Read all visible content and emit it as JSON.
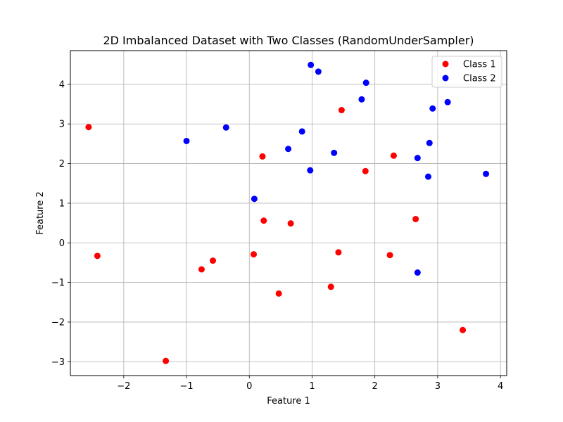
{
  "chart_data": {
    "type": "scatter",
    "title": "2D Imbalanced Dataset with Two Classes (RandomUnderSampler)",
    "xlabel": "Feature 1",
    "ylabel": "Feature 2",
    "xlim": [
      -2.85,
      4.1
    ],
    "ylim": [
      -3.35,
      4.85
    ],
    "xticks": [
      -2,
      -1,
      0,
      1,
      2,
      3,
      4
    ],
    "xtick_labels": [
      "−2",
      "−1",
      "0",
      "1",
      "2",
      "3",
      "4"
    ],
    "yticks": [
      -3,
      -2,
      -1,
      0,
      1,
      2,
      3,
      4
    ],
    "ytick_labels": [
      "−3",
      "−2",
      "−1",
      "0",
      "1",
      "2",
      "3",
      "4"
    ],
    "grid": true,
    "legend_position": "top-right",
    "series": [
      {
        "name": "Class 1",
        "color": "#ff0000",
        "points": [
          [
            -2.56,
            2.92
          ],
          [
            -2.42,
            -0.33
          ],
          [
            -1.33,
            -2.98
          ],
          [
            -0.76,
            -0.67
          ],
          [
            -0.58,
            -0.45
          ],
          [
            0.07,
            -0.29
          ],
          [
            0.21,
            2.18
          ],
          [
            0.23,
            0.56
          ],
          [
            0.47,
            -1.28
          ],
          [
            0.66,
            0.49
          ],
          [
            1.3,
            -1.11
          ],
          [
            1.42,
            -0.24
          ],
          [
            1.47,
            3.35
          ],
          [
            1.85,
            1.81
          ],
          [
            2.24,
            -0.31
          ],
          [
            2.3,
            2.2
          ],
          [
            2.65,
            0.6
          ],
          [
            3.4,
            -2.2
          ]
        ]
      },
      {
        "name": "Class 2",
        "color": "#0000ff",
        "points": [
          [
            -1.0,
            2.57
          ],
          [
            -0.37,
            2.91
          ],
          [
            0.08,
            1.11
          ],
          [
            0.62,
            2.37
          ],
          [
            0.84,
            2.81
          ],
          [
            0.97,
            1.83
          ],
          [
            0.98,
            4.49
          ],
          [
            1.1,
            4.32
          ],
          [
            1.35,
            2.27
          ],
          [
            1.79,
            3.62
          ],
          [
            1.86,
            4.04
          ],
          [
            2.68,
            2.14
          ],
          [
            2.68,
            -0.75
          ],
          [
            2.85,
            1.67
          ],
          [
            2.87,
            2.52
          ],
          [
            2.92,
            3.39
          ],
          [
            3.16,
            3.55
          ],
          [
            3.77,
            1.74
          ]
        ]
      }
    ]
  }
}
